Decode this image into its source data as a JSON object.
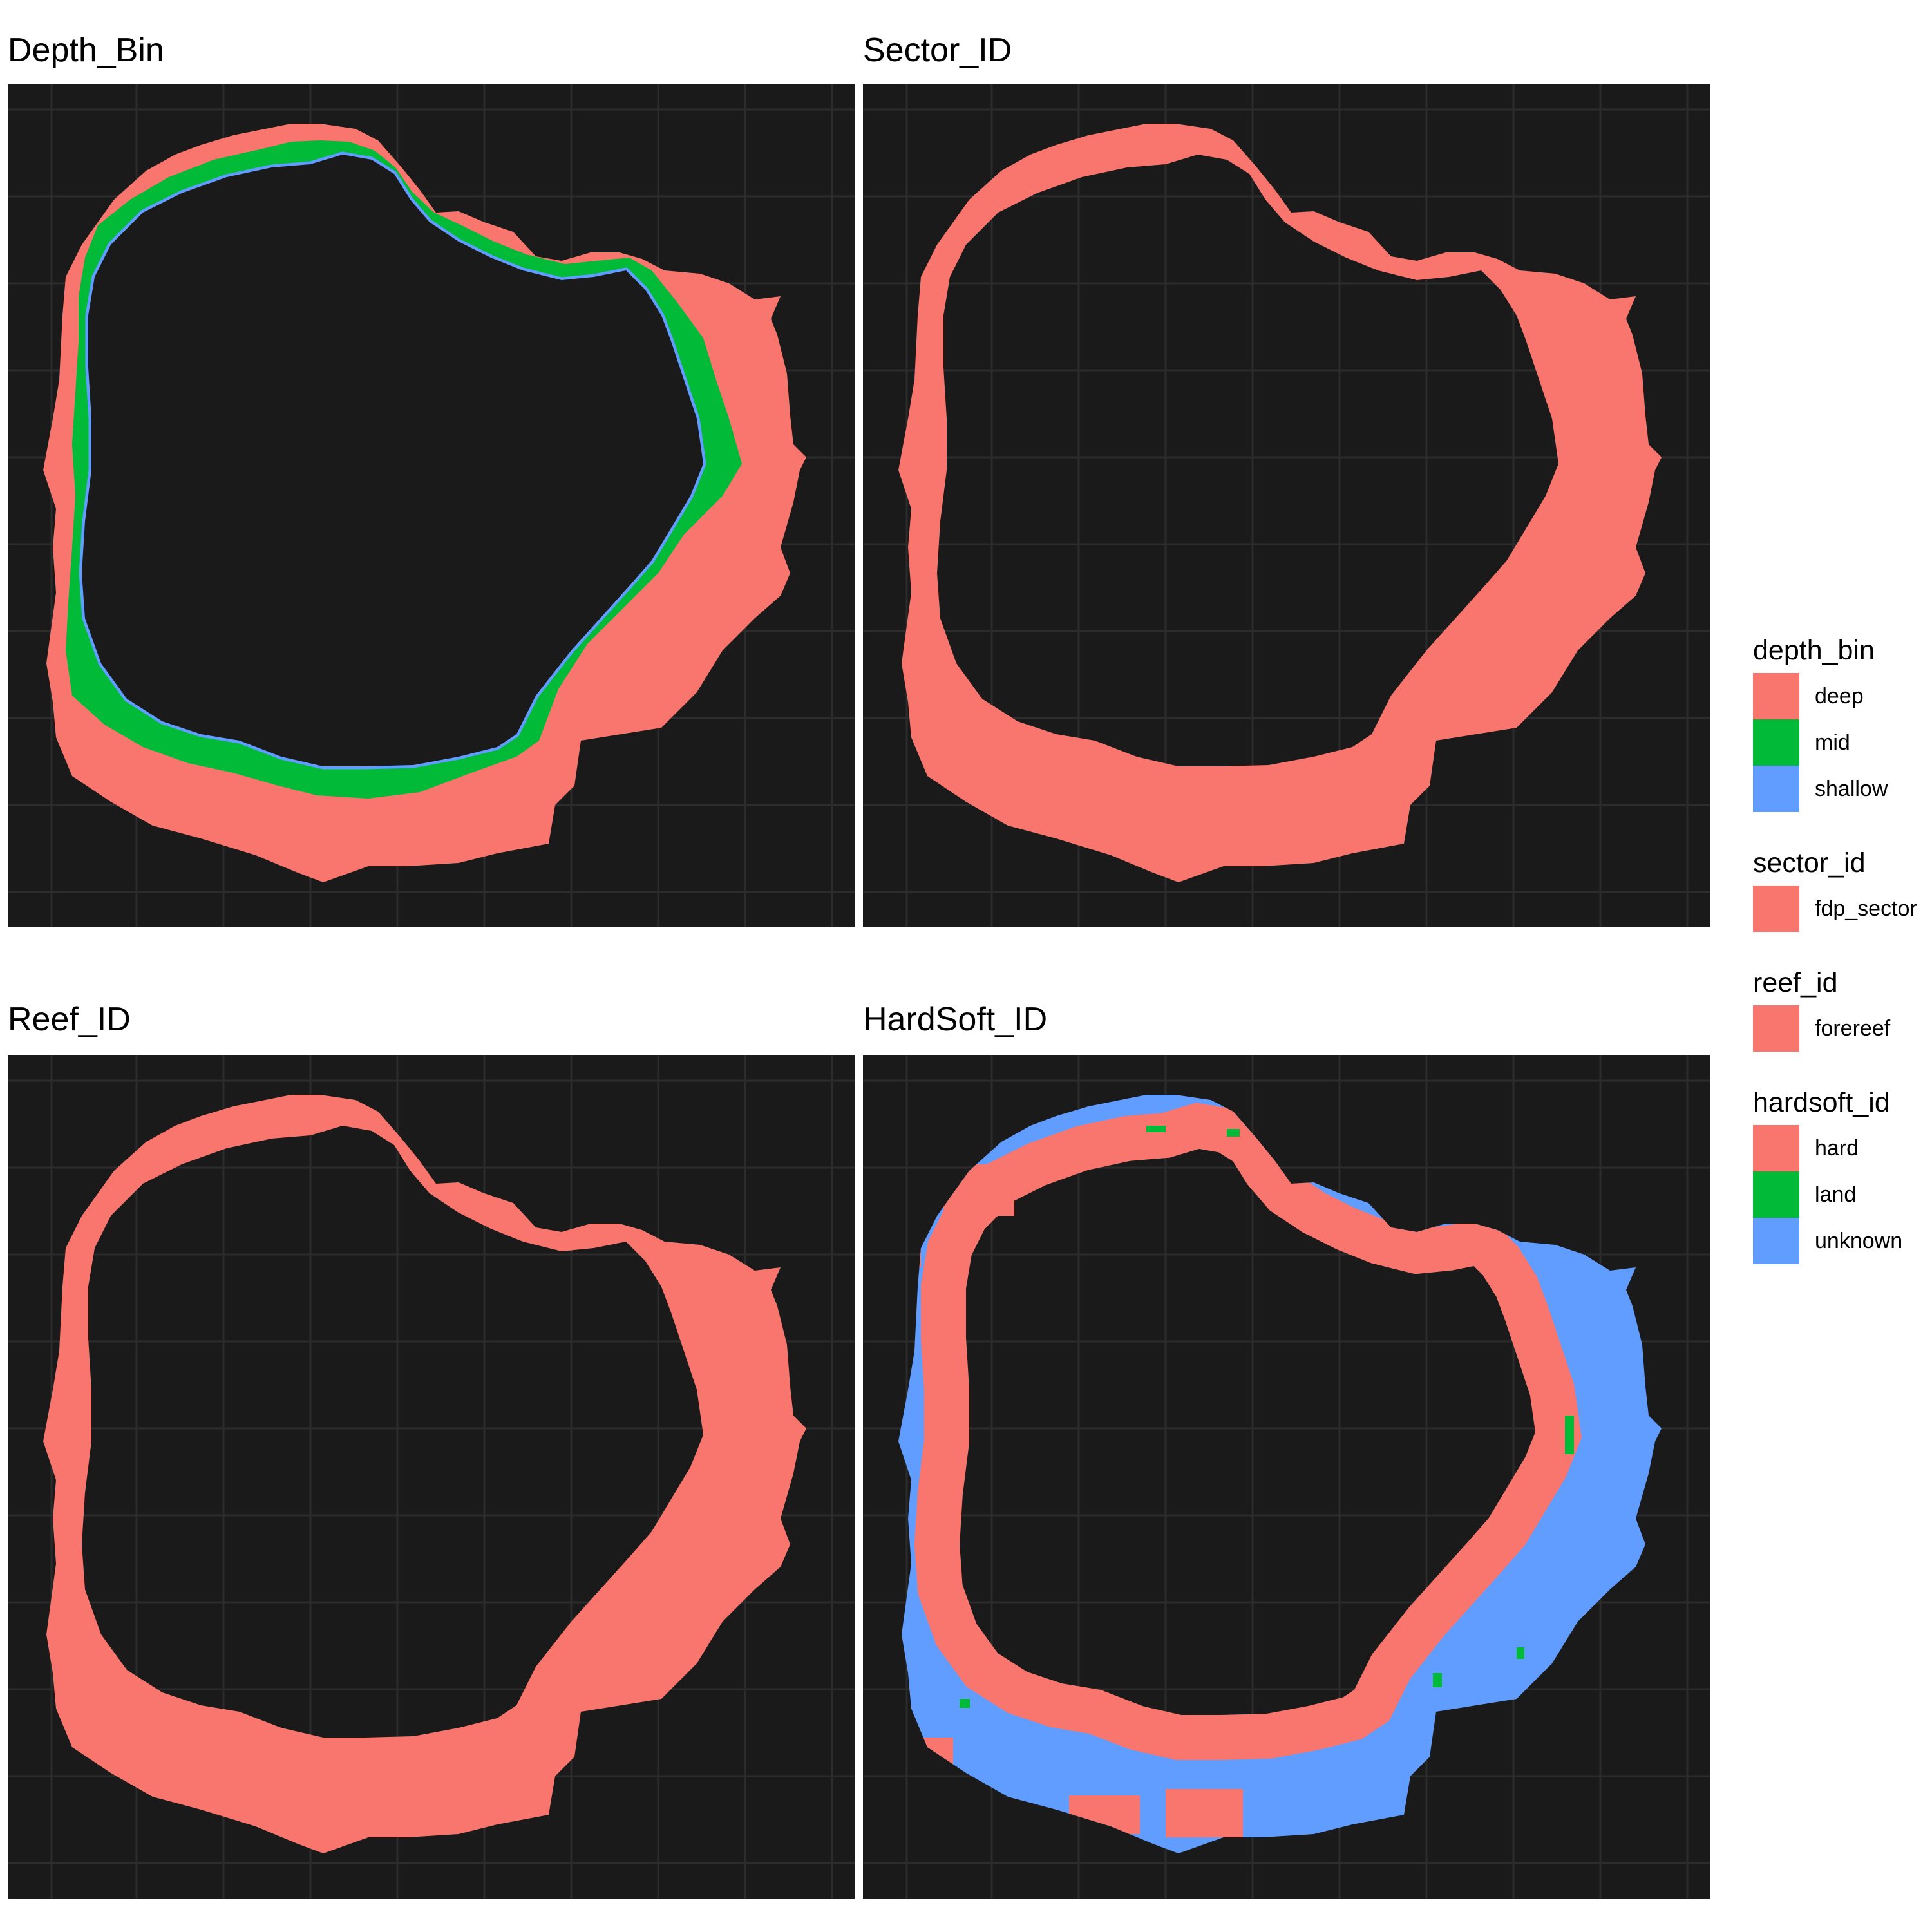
{
  "colors": {
    "deep": "#F8766D",
    "mid": "#00BA38",
    "shallow": "#619CFF",
    "fdp_sector": "#F8766D",
    "forereef": "#F8766D",
    "hard": "#F8766D",
    "land": "#00BA38",
    "unknown": "#619CFF",
    "panel_background": "#1a1a1a"
  },
  "panels": [
    {
      "title": "Depth_Bin",
      "variable": "depth_bin"
    },
    {
      "title": "Sector_ID",
      "variable": "sector_id"
    },
    {
      "title": "Reef_ID",
      "variable": "reef_id"
    },
    {
      "title": "HardSoft_ID",
      "variable": "hardsoft_id"
    }
  ],
  "legends": [
    {
      "title": "depth_bin",
      "items": [
        {
          "label": "deep",
          "color": "#F8766D"
        },
        {
          "label": "mid",
          "color": "#00BA38"
        },
        {
          "label": "shallow",
          "color": "#619CFF"
        }
      ]
    },
    {
      "title": "sector_id",
      "items": [
        {
          "label": "fdp_sector",
          "color": "#F8766D"
        }
      ]
    },
    {
      "title": "reef_id",
      "items": [
        {
          "label": "forereef",
          "color": "#F8766D"
        }
      ]
    },
    {
      "title": "hardsoft_id",
      "items": [
        {
          "label": "hard",
          "color": "#F8766D"
        },
        {
          "label": "land",
          "color": "#00BA38"
        },
        {
          "label": "unknown",
          "color": "#619CFF"
        }
      ]
    }
  ]
}
